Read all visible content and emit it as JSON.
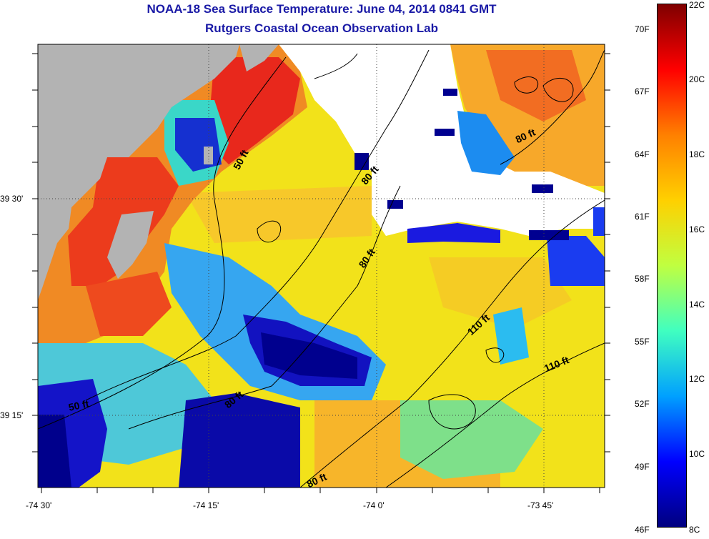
{
  "header": {
    "title": "NOAA-18 Sea Surface Temperature:  June 04, 2014 0841 GMT",
    "subtitle": "Rutgers Coastal Ocean Observation Lab"
  },
  "map": {
    "longitude_labels": [
      "-74 30'",
      "-74 15'",
      "-74 0'",
      "-73 45'"
    ],
    "latitude_labels": [
      "39 30'",
      "39 15'"
    ],
    "contour_labels": [
      "50 ft",
      "50 ft",
      "80 ft",
      "80 ft",
      "80 ft",
      "80 ft",
      "80 ft",
      "110 ft",
      "110 ft"
    ],
    "colors": {
      "land": "#b3b3b3",
      "no_data": "#ffffff",
      "title": "#1a1aa6"
    }
  },
  "colorbar": {
    "celsius_labels": [
      "22C",
      "20C",
      "18C",
      "16C",
      "14C",
      "12C",
      "10C",
      "8C"
    ],
    "fahrenheit_labels": [
      "70F",
      "67F",
      "64F",
      "61F",
      "58F",
      "55F",
      "52F",
      "49F",
      "46F"
    ],
    "range_celsius": [
      8,
      22
    ]
  }
}
